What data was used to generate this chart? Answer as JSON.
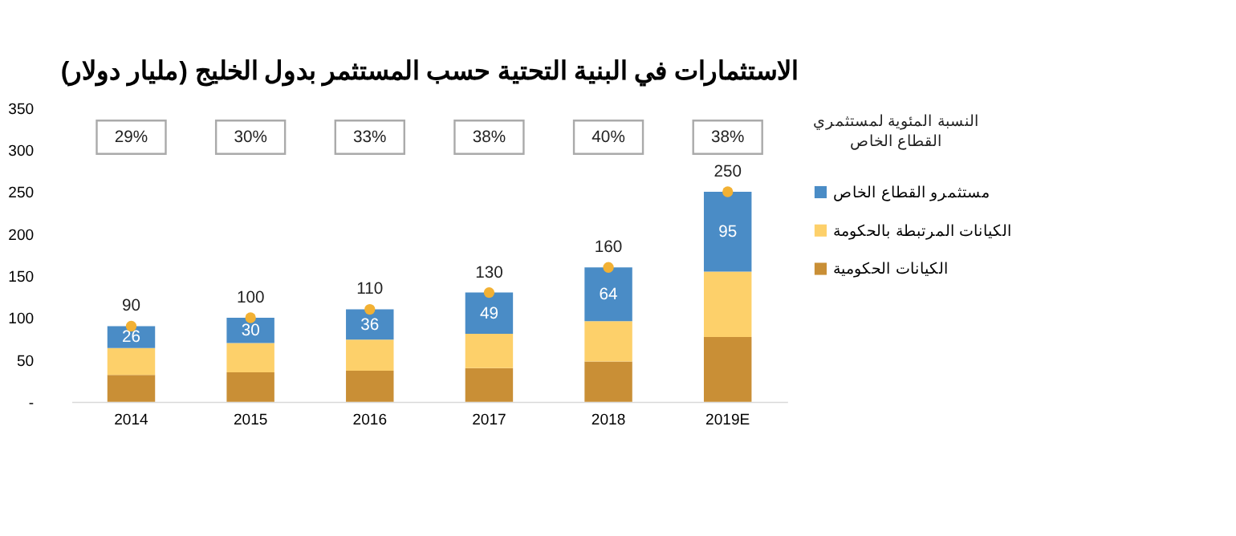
{
  "chart_data": {
    "type": "bar",
    "title": "الاستثمارات في البنية التحتية حسب المستثمر بدول الخليج (مليار دولار)",
    "categories": [
      "2014",
      "2015",
      "2016",
      "2017",
      "2018",
      "2019E"
    ],
    "stacked": true,
    "series": [
      {
        "name": "الكيانات الحكومية",
        "color": "#c98f36",
        "values": [
          32,
          35,
          37,
          40,
          48,
          77
        ]
      },
      {
        "name": "الكيانات المرتبطة بالحكومة",
        "color": "#fdd06a",
        "values": [
          32,
          35,
          37,
          41,
          48,
          78
        ]
      },
      {
        "name": "مستثمرو القطاع الخاص",
        "color": "#4a8cc6",
        "values": [
          26,
          30,
          36,
          49,
          64,
          95
        ],
        "value_labels": [
          "26",
          "30",
          "36",
          "49",
          "64",
          "95"
        ]
      },
      {
        "type": "scatter",
        "color": "#f2b134",
        "values": [
          90,
          100,
          110,
          130,
          160,
          250
        ]
      }
    ],
    "totals": [
      "90",
      "100",
      "110",
      "130",
      "160",
      "250"
    ],
    "ylim": [
      0,
      350
    ],
    "yticks": [
      {
        "value": 0,
        "label": "-"
      },
      50,
      100,
      150,
      200,
      250,
      300,
      350
    ],
    "grid": false,
    "legend": "right",
    "marker": "circle",
    "annotations": [
      "النسبة المئوية لمستثمري القطاع الخاص",
      {
        "text": "29%",
        "x": "2014"
      },
      {
        "text": "30%",
        "x": "2015"
      },
      {
        "text": "33%",
        "x": "2016"
      },
      {
        "text": "38%",
        "x": "2017"
      },
      {
        "text": "40%",
        "x": "2018"
      },
      {
        "text": "38%",
        "x": "2019E"
      }
    ]
  }
}
